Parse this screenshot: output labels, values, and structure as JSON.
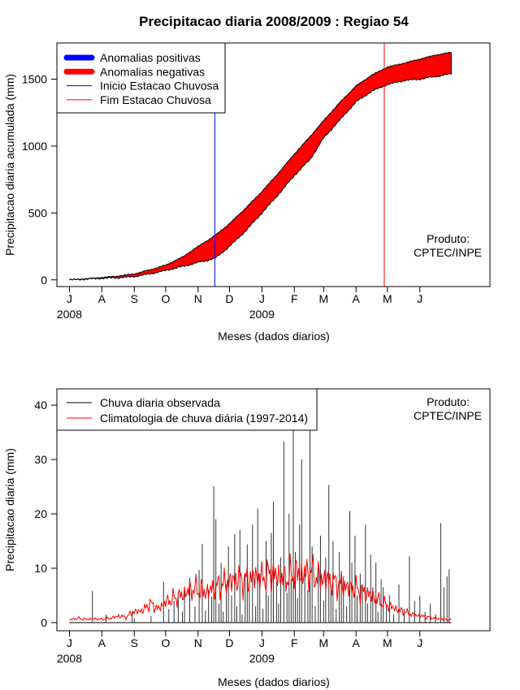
{
  "chart_data": [
    {
      "type": "area",
      "title": "Precipitacao diaria 2008/2009 : Regiao 54",
      "xlabel": "Meses (dados diarios)",
      "ylabel": "Precipitacao diaria acumulada (mm)",
      "ylim": [
        -50,
        1770
      ],
      "yticks": [
        0,
        500,
        1000,
        1500
      ],
      "xlim_days": [
        -12,
        402
      ],
      "month_ticks": [
        {
          "label": "J",
          "day": 0
        },
        {
          "label": "A",
          "day": 31
        },
        {
          "label": "S",
          "day": 62
        },
        {
          "label": "O",
          "day": 92
        },
        {
          "label": "N",
          "day": 123
        },
        {
          "label": "D",
          "day": 153
        },
        {
          "label": "J",
          "day": 184
        },
        {
          "label": "F",
          "day": 215
        },
        {
          "label": "M",
          "day": 243
        },
        {
          "label": "A",
          "day": 274
        },
        {
          "label": "M",
          "day": 304
        },
        {
          "label": "J",
          "day": 335
        }
      ],
      "year_labels": [
        {
          "label": "2008",
          "day": 0
        },
        {
          "label": "2009",
          "day": 184
        }
      ],
      "legend": [
        {
          "label": "Anomalias positivas",
          "color": "#0000ff",
          "style": "thick"
        },
        {
          "label": "Anomalias negativas",
          "color": "#ff0000",
          "style": "thick"
        },
        {
          "label": "Inicio Estacao Chuvosa",
          "color": "#0000ff",
          "style": "thin"
        },
        {
          "label": "Fim Estacao Chuvosa",
          "color": "#ff0000",
          "style": "thin"
        }
      ],
      "annotation": [
        "Produto:",
        "CPTEC/INPE"
      ],
      "rainy_season_start_day": 139,
      "rainy_season_end_day": 301,
      "climatology_cumulative": {
        "days": [
          0,
          15,
          31,
          46,
          62,
          77,
          92,
          108,
          123,
          139,
          153,
          169,
          184,
          200,
          215,
          230,
          243,
          259,
          274,
          289,
          304,
          320,
          335,
          350,
          365
        ],
        "values": [
          0,
          8,
          18,
          28,
          45,
          75,
          110,
          170,
          250,
          330,
          420,
          540,
          660,
          800,
          940,
          1070,
          1190,
          1330,
          1450,
          1530,
          1590,
          1620,
          1650,
          1680,
          1700
        ]
      },
      "observed_cumulative": {
        "days": [
          0,
          15,
          31,
          46,
          62,
          77,
          92,
          108,
          123,
          139,
          153,
          169,
          184,
          200,
          215,
          230,
          243,
          259,
          274,
          289,
          304,
          320,
          335,
          350,
          365
        ],
        "values": [
          0,
          5,
          12,
          16,
          25,
          45,
          70,
          100,
          130,
          160,
          250,
          370,
          500,
          640,
          780,
          900,
          1060,
          1200,
          1330,
          1410,
          1460,
          1490,
          1500,
          1520,
          1540
        ]
      }
    },
    {
      "type": "bar",
      "xlabel": "Meses (dados diarios)",
      "ylabel": "Precipitacao diaria (mm)",
      "ylim": [
        -1.5,
        43
      ],
      "yticks": [
        0,
        10,
        20,
        30,
        40
      ],
      "xlim_days": [
        -12,
        402
      ],
      "month_ticks": [
        {
          "label": "J",
          "day": 0
        },
        {
          "label": "A",
          "day": 31
        },
        {
          "label": "S",
          "day": 62
        },
        {
          "label": "O",
          "day": 92
        },
        {
          "label": "N",
          "day": 123
        },
        {
          "label": "D",
          "day": 153
        },
        {
          "label": "J",
          "day": 184
        },
        {
          "label": "F",
          "day": 215
        },
        {
          "label": "M",
          "day": 243
        },
        {
          "label": "A",
          "day": 274
        },
        {
          "label": "M",
          "day": 304
        },
        {
          "label": "J",
          "day": 335
        }
      ],
      "year_labels": [
        {
          "label": "2008",
          "day": 0
        },
        {
          "label": "2009",
          "day": 184
        }
      ],
      "legend": [
        {
          "label": "Chuva diaria observada",
          "color": "#000000"
        },
        {
          "label": "Climatologia de chuva diária (1997-2014)",
          "color": "#ff0000"
        }
      ],
      "annotation": [
        "Produto:",
        "CPTEC/INPE"
      ],
      "observed_daily": {
        "name": "Chuva diaria observada",
        "days": [
          22,
          35,
          60,
          62,
          78,
          90,
          95,
          100,
          104,
          108,
          110,
          115,
          120,
          124,
          127,
          130,
          133,
          136,
          138,
          140,
          143,
          145,
          147,
          150,
          152,
          155,
          158,
          160,
          163,
          165,
          168,
          170,
          172,
          175,
          178,
          180,
          182,
          185,
          188,
          190,
          193,
          195,
          198,
          200,
          202,
          205,
          208,
          210,
          212,
          214,
          216,
          218,
          220,
          222,
          225,
          228,
          230,
          232,
          235,
          238,
          240,
          243,
          245,
          248,
          250,
          252,
          255,
          258,
          260,
          262,
          265,
          268,
          270,
          273,
          275,
          278,
          280,
          283,
          285,
          288,
          290,
          293,
          295,
          298,
          300,
          303,
          306,
          310,
          315,
          320,
          325,
          330,
          335,
          340,
          345,
          350,
          355,
          358,
          361,
          363
        ],
        "values": [
          5.8,
          1.5,
          2.1,
          0.8,
          1.2,
          7.5,
          2.5,
          4.0,
          5.2,
          2.0,
          6.2,
          8.2,
          3.0,
          9.7,
          14.5,
          2.2,
          6.0,
          4.8,
          25.1,
          19.0,
          3.5,
          11.0,
          2.0,
          7.0,
          14.0,
          5.0,
          16.3,
          3.0,
          17.0,
          1.5,
          8.8,
          14.4,
          6.0,
          18.0,
          3.0,
          21.0,
          9.0,
          2.5,
          15.0,
          5.0,
          16.5,
          22.3,
          7.5,
          3.5,
          12.0,
          33.3,
          5.5,
          20.0,
          8.0,
          41.5,
          13.0,
          4.5,
          18.0,
          30.0,
          9.0,
          6.0,
          38.3,
          14.0,
          3.0,
          11.0,
          16.0,
          4.0,
          12.0,
          25.3,
          7.0,
          15.0,
          2.5,
          13.0,
          9.5,
          8.5,
          3.0,
          20.5,
          11.0,
          16.0,
          5.0,
          9.0,
          7.0,
          18.0,
          3.5,
          12.5,
          6.5,
          11.0,
          2.0,
          8.0,
          6.5,
          3.0,
          5.0,
          1.5,
          7.0,
          2.5,
          12.2,
          4.0,
          5.0,
          2.0,
          3.5,
          1.5,
          18.3,
          6.5,
          8.5,
          9.8
        ]
      },
      "climatology_daily": {
        "name": "Climatologia de chuva diária (1997-2014)",
        "days": [
          0,
          8,
          16,
          24,
          31,
          39,
          47,
          54,
          62,
          70,
          77,
          85,
          92,
          100,
          108,
          115,
          123,
          131,
          139,
          146,
          153,
          161,
          169,
          177,
          184,
          192,
          200,
          207,
          215,
          222,
          230,
          236,
          243,
          251,
          259,
          266,
          274,
          282,
          289,
          296,
          304,
          312,
          320,
          327,
          335,
          343,
          350,
          358,
          365
        ],
        "values": [
          0.5,
          0.8,
          0.6,
          0.7,
          0.6,
          0.8,
          1.2,
          1.0,
          2.0,
          2.2,
          3.5,
          2.5,
          3.8,
          4.5,
          5.0,
          6.0,
          6.2,
          5.5,
          6.5,
          7.0,
          7.5,
          8.0,
          7.8,
          8.5,
          8.2,
          9.0,
          8.5,
          8.0,
          9.2,
          8.8,
          9.5,
          8.5,
          8.0,
          7.5,
          7.0,
          6.5,
          6.2,
          5.5,
          5.0,
          4.0,
          3.2,
          2.5,
          2.0,
          1.5,
          1.2,
          1.0,
          0.8,
          0.6,
          0.5
        ]
      }
    }
  ]
}
